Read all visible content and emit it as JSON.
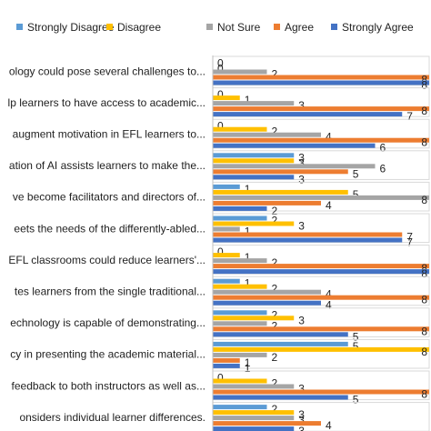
{
  "chart_data": {
    "type": "bar",
    "orientation": "horizontal",
    "xlim": [
      0,
      8
    ],
    "grid": false,
    "legend_position": "top",
    "categories": [
      "ology could pose several challenges to...",
      "lp learners to have access to academic...",
      "augment motivation in EFL learners to...",
      "ation of AI assists learners to make the...",
      "ve become facilitators and directors of...",
      "eets the needs of the differently-abled...",
      "EFL classrooms could reduce learners'...",
      "tes learners from the single traditional...",
      "echnology is capable of demonstrating...",
      "cy in presenting the academic material...",
      "feedback to both instructors as well as...",
      "onsiders individual learner differences."
    ],
    "series": [
      {
        "name": "Strongly Disagree",
        "color": "#5B9BD5",
        "values": [
          0,
          0,
          0,
          3,
          1,
          2,
          0,
          1,
          2,
          5,
          0,
          2
        ]
      },
      {
        "name": "Disagree",
        "color": "#FFC000",
        "values": [
          0,
          1,
          2,
          3,
          5,
          3,
          1,
          2,
          3,
          8,
          2,
          3
        ]
      },
      {
        "name": "Not Sure",
        "color": "#A5A5A5",
        "values": [
          2,
          3,
          4,
          6,
          8,
          1,
          2,
          4,
          2,
          2,
          3,
          3
        ]
      },
      {
        "name": "Agree",
        "color": "#ED7D31",
        "values": [
          8,
          8,
          8,
          5,
          4,
          7,
          8,
          8,
          8,
          1,
          8,
          4
        ]
      },
      {
        "name": "Strongly Agree",
        "color": "#4472C4",
        "values": [
          8,
          7,
          6,
          3,
          2,
          7,
          8,
          4,
          5,
          1,
          5,
          3
        ]
      }
    ]
  }
}
